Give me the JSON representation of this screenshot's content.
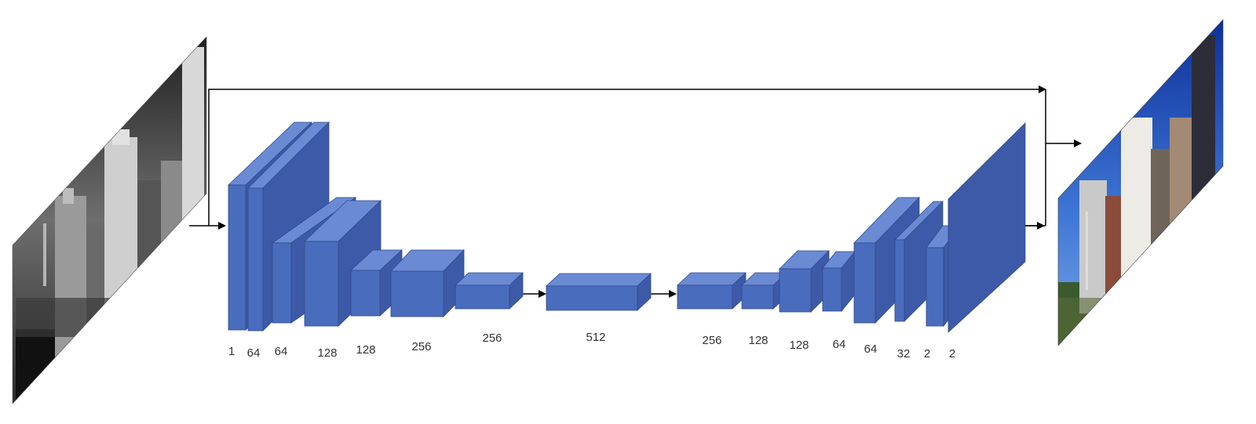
{
  "colors": {
    "block_front": "#4a6cbd",
    "block_top": "#6a8bd3",
    "block_side": "#3d5aa8",
    "block_edge": "#2f4a8c",
    "arrow": "#000000",
    "label": "#333333"
  },
  "input_image": {
    "icon": "grayscale-city-skyline-photo"
  },
  "output_image": {
    "icon": "color-city-skyline-photo"
  },
  "layers": [
    {
      "label": "1"
    },
    {
      "label": "64"
    },
    {
      "label": "64"
    },
    {
      "label": "128"
    },
    {
      "label": "128"
    },
    {
      "label": "256"
    },
    {
      "label": "256"
    },
    {
      "label": "512"
    },
    {
      "label": "256"
    },
    {
      "label": "128"
    },
    {
      "label": "128"
    },
    {
      "label": "64"
    },
    {
      "label": "64"
    },
    {
      "label": "32"
    },
    {
      "label": "2"
    },
    {
      "label": "2"
    }
  ]
}
